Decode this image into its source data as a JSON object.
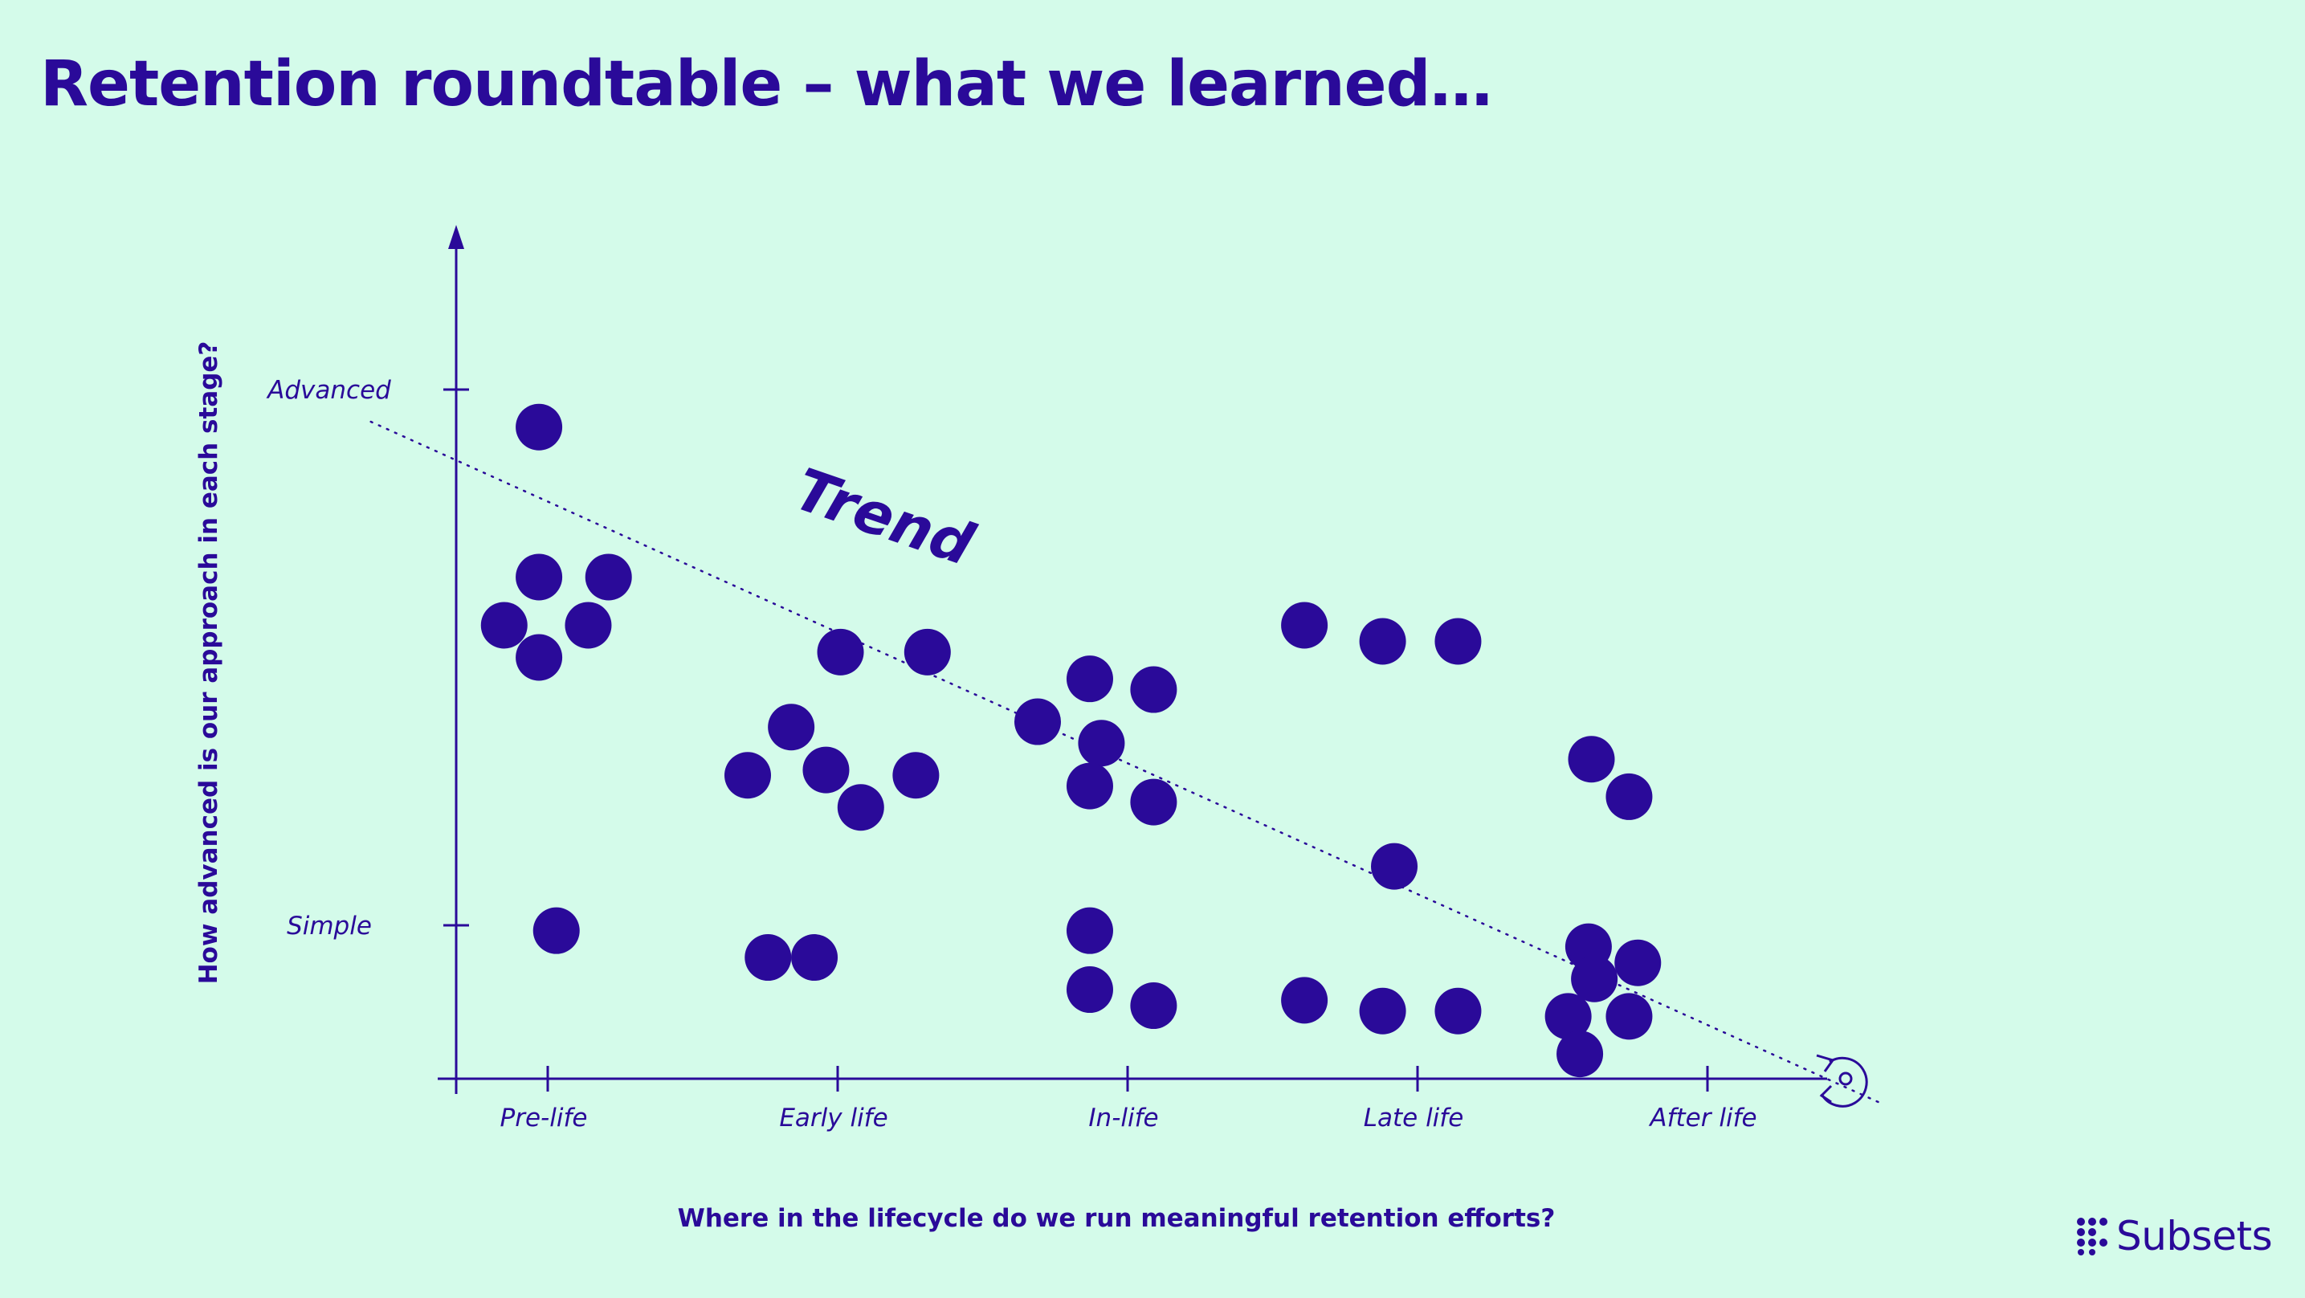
{
  "title": "Retention roundtable – what we learned…",
  "logo": {
    "text": "Subsets",
    "icon": "subsets-dot-grid-icon"
  },
  "colors": {
    "background": "#d4fbea",
    "ink": "#2a0a99"
  },
  "chart_data": {
    "type": "scatter",
    "xlabel": "Where in the lifecycle do we run meaningful retention efforts?",
    "ylabel": "How advanced is our approach in each stage?",
    "x_ticks": [
      "Pre-life",
      "Early life",
      "In-life",
      "Late life",
      "After life"
    ],
    "y_ticks": [
      "Simple",
      "Advanced"
    ],
    "xlim": [
      -0.3,
      4.5
    ],
    "ylim": [
      -0.3,
      1.0
    ],
    "x_end_icon": "lifecycle-loop-icon",
    "trend": {
      "label": "Trend",
      "style": "dotted",
      "start": [
        -0.3,
        0.94
      ],
      "end": [
        4.9,
        -0.33
      ]
    },
    "points": [
      [
        0.28,
        0.93
      ],
      [
        0.28,
        0.65
      ],
      [
        0.52,
        0.65
      ],
      [
        0.16,
        0.56
      ],
      [
        0.45,
        0.56
      ],
      [
        0.28,
        0.5
      ],
      [
        0.34,
        -0.01
      ],
      [
        1.15,
        0.37
      ],
      [
        1.0,
        0.28
      ],
      [
        1.27,
        0.29
      ],
      [
        1.39,
        0.22
      ],
      [
        1.58,
        0.28
      ],
      [
        1.32,
        0.51
      ],
      [
        1.62,
        0.51
      ],
      [
        1.07,
        -0.06
      ],
      [
        1.23,
        -0.06
      ],
      [
        2.0,
        0.38
      ],
      [
        2.18,
        0.46
      ],
      [
        2.22,
        0.34
      ],
      [
        2.4,
        0.44
      ],
      [
        2.18,
        0.26
      ],
      [
        2.4,
        0.23
      ],
      [
        2.18,
        -0.01
      ],
      [
        2.18,
        -0.12
      ],
      [
        2.4,
        -0.15
      ],
      [
        2.92,
        0.56
      ],
      [
        3.19,
        0.53
      ],
      [
        3.45,
        0.53
      ],
      [
        3.23,
        0.11
      ],
      [
        2.92,
        -0.14
      ],
      [
        3.19,
        -0.16
      ],
      [
        3.45,
        -0.16
      ],
      [
        3.91,
        0.31
      ],
      [
        4.04,
        0.24
      ],
      [
        3.9,
        -0.04
      ],
      [
        4.07,
        -0.07
      ],
      [
        3.92,
        -0.1
      ],
      [
        3.83,
        -0.17
      ],
      [
        4.04,
        -0.17
      ],
      [
        3.87,
        -0.24
      ]
    ]
  }
}
